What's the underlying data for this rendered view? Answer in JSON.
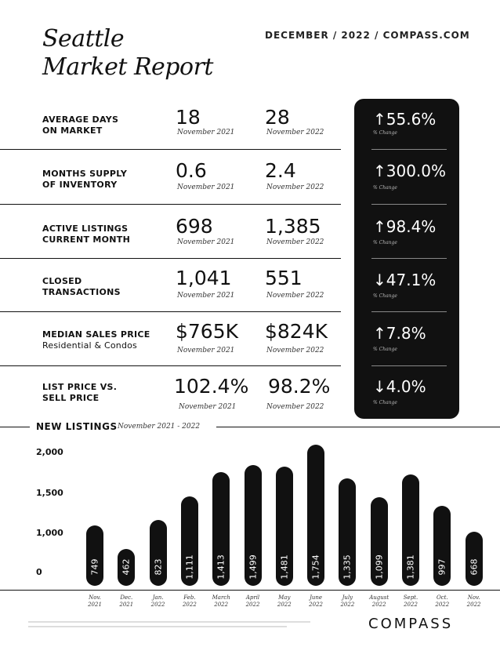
{
  "header": {
    "title_line1": "Seattle",
    "title_line2": "Market Report",
    "right_text": "DECEMBER / 2022 / COMPASS.COM"
  },
  "metrics": [
    {
      "label_line1": "AVERAGE DAYS",
      "label_line2": "ON MARKET",
      "value_2021": "18",
      "date_2021": "November 2021",
      "value_2022": "28",
      "date_2022": "November 2022",
      "change": "↑55.6%",
      "change_caption": "% Change"
    },
    {
      "label_line1": "MONTHS SUPPLY",
      "label_line2": "OF INVENTORY",
      "value_2021": "0.6",
      "date_2021": "November 2021",
      "value_2022": "2.4",
      "date_2022": "November 2022",
      "change": "↑300.0%",
      "change_caption": "% Change"
    },
    {
      "label_line1": "ACTIVE LISTINGS",
      "label_line2": "CURRENT MONTH",
      "value_2021": "698",
      "date_2021": "November 2021",
      "value_2022": "1,385",
      "date_2022": "November 2022",
      "change": "↑98.4%",
      "change_caption": "% Change"
    },
    {
      "label_line1": "CLOSED",
      "label_line2": "TRANSACTIONS",
      "value_2021": "1,041",
      "date_2021": "November 2021",
      "value_2022": "551",
      "date_2022": "November 2022",
      "change": "↓47.1%",
      "change_caption": "% Change"
    },
    {
      "label_line1": "MEDIAN SALES PRICE",
      "label_line2": "Residential & Condos",
      "value_2021": "$765K",
      "date_2021": "November 2021",
      "value_2022": "$824K",
      "date_2022": "November 2022",
      "change": "↑7.8%",
      "change_caption": "% Change"
    },
    {
      "label_line1": "LIST PRICE VS.",
      "label_line2": "SELL PRICE",
      "value_2021": "102.4%",
      "date_2021": "November 2021",
      "value_2022": "98.2%",
      "date_2022": "November 2022",
      "change": "↓4.0%",
      "change_caption": "% Change"
    }
  ],
  "new_listings": {
    "title": "NEW LISTINGS",
    "subtitle": "November 2021 - 2022"
  },
  "chart_data": {
    "type": "bar",
    "title": "NEW LISTINGS",
    "subtitle": "November 2021 - 2022",
    "categories": [
      [
        "Nov.",
        "2021"
      ],
      [
        "Dec.",
        "2021"
      ],
      [
        "Jan.",
        "2022"
      ],
      [
        "Feb.",
        "2022"
      ],
      [
        "March",
        "2022"
      ],
      [
        "April",
        "2022"
      ],
      [
        "May",
        "2022"
      ],
      [
        "June",
        "2022"
      ],
      [
        "July",
        "2022"
      ],
      [
        "August",
        "2022"
      ],
      [
        "Sept.",
        "2022"
      ],
      [
        "Oct.",
        "2022"
      ],
      [
        "Nov.",
        "2022"
      ]
    ],
    "values": [
      749,
      462,
      823,
      1111,
      1413,
      1499,
      1481,
      1754,
      1335,
      1099,
      1381,
      997,
      668
    ],
    "value_labels": [
      "749",
      "462",
      "823",
      "1,111",
      "1,413",
      "1,499",
      "1,481",
      "1,754",
      "1,335",
      "1,099",
      "1,381",
      "997",
      "668"
    ],
    "y_ticks": [
      "2,000",
      "1,500",
      "1,000",
      "0"
    ],
    "y_tick_values": [
      2000,
      1500,
      1000,
      0
    ],
    "ylim": [
      0,
      2000
    ],
    "grid": false,
    "bar_color": "#111111",
    "label_color": "#ffffff"
  },
  "footer": {
    "logo": "COMPASS"
  }
}
